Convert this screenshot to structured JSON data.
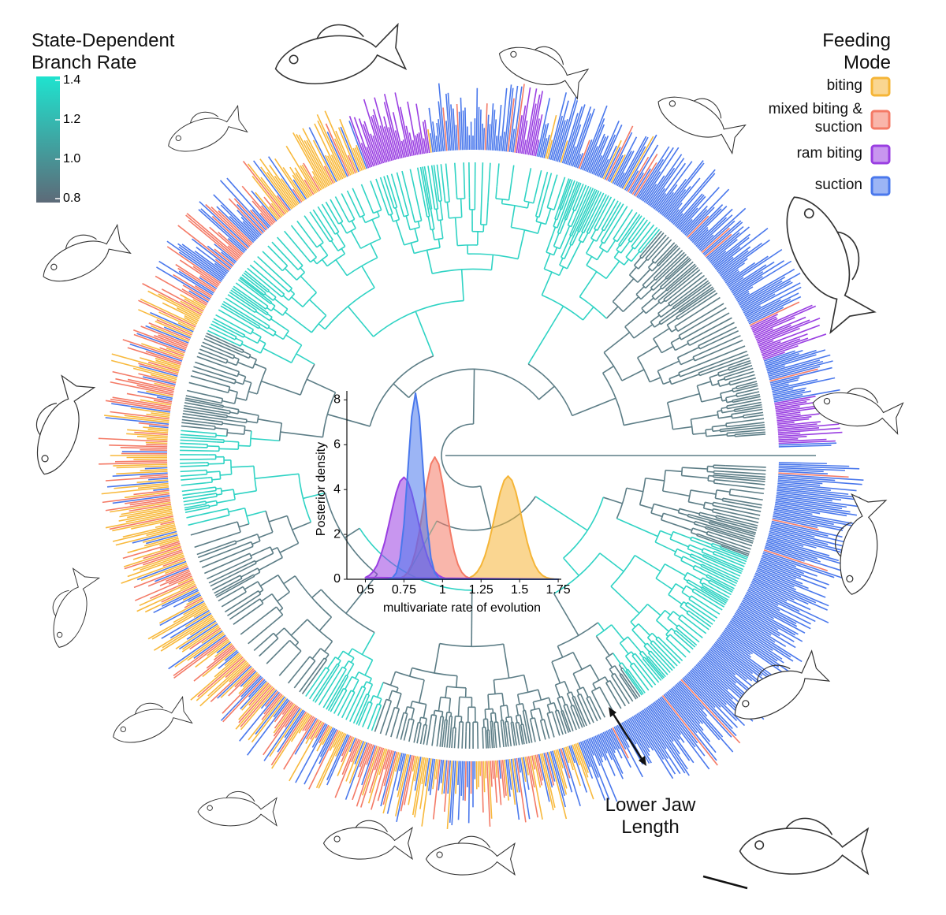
{
  "colorbar": {
    "title": "State-Dependent Branch Rate",
    "lim": [
      0.78,
      1.42
    ],
    "ticks": [
      1.4,
      1.2,
      {
        "value": 1.0,
        "label": "1.0"
      },
      0.8
    ],
    "colors": [
      "#5d6a78",
      "#1fe3cf"
    ]
  },
  "annotation": "Lower Jaw Length",
  "chart_data": {
    "type": "area",
    "legend_title": "Feeding Mode",
    "xlabel": "multivariate rate of evolution",
    "ylabel": "Posterior density",
    "xlim": [
      0.38,
      1.77
    ],
    "xticks": [
      0.5,
      0.75,
      1,
      1.25,
      1.5,
      1.75
    ],
    "ylim": [
      0,
      8.4
    ],
    "yticks": [
      0,
      2,
      4,
      6,
      8
    ],
    "x": [
      0.5,
      0.525,
      0.55,
      0.575,
      0.6,
      0.625,
      0.65,
      0.675,
      0.7,
      0.725,
      0.75,
      0.775,
      0.8,
      0.825,
      0.85,
      0.875,
      0.9,
      0.925,
      0.95,
      0.975,
      1.0,
      1.025,
      1.05,
      1.075,
      1.1,
      1.125,
      1.15,
      1.175,
      1.2,
      1.225,
      1.25,
      1.275,
      1.3,
      1.325,
      1.35,
      1.375,
      1.4,
      1.425,
      1.45,
      1.475,
      1.5,
      1.525,
      1.55,
      1.575,
      1.6,
      1.625,
      1.65,
      1.675,
      1.7,
      1.725,
      1.75
    ],
    "series": [
      {
        "name": "biting",
        "color": "#f5b537",
        "values": [
          0,
          0,
          0,
          0,
          0,
          0,
          0,
          0,
          0,
          0,
          0,
          0,
          0,
          0,
          0,
          0,
          0,
          0,
          0,
          0,
          0,
          0,
          0,
          0,
          0,
          0.01,
          0.03,
          0.07,
          0.16,
          0.33,
          0.61,
          1.04,
          1.64,
          2.38,
          3.17,
          3.9,
          4.41,
          4.6,
          4.41,
          3.9,
          3.17,
          2.38,
          1.64,
          1.04,
          0.61,
          0.33,
          0.16,
          0.07,
          0.03,
          0.01,
          0
        ]
      },
      {
        "name": "mixed biting & suction",
        "color": "#f47a66",
        "values": [
          0,
          0,
          0,
          0,
          0,
          0,
          0,
          0,
          0.02,
          0.05,
          0.13,
          0.31,
          0.66,
          1.25,
          2.13,
          3.21,
          4.31,
          5.14,
          5.45,
          5.14,
          4.31,
          3.21,
          2.13,
          1.25,
          0.66,
          0.31,
          0.13,
          0.05,
          0.02,
          0,
          0,
          0,
          0,
          0,
          0,
          0,
          0,
          0,
          0,
          0,
          0,
          0,
          0,
          0,
          0,
          0,
          0,
          0,
          0,
          0,
          0
        ]
      },
      {
        "name": "ram biting",
        "color": "#9a3fe2",
        "values": [
          0.08,
          0.17,
          0.34,
          0.62,
          1.06,
          1.64,
          2.38,
          3.15,
          3.87,
          4.37,
          4.55,
          4.37,
          3.87,
          3.15,
          2.38,
          1.64,
          1.06,
          0.62,
          0.34,
          0.17,
          0.08,
          0.03,
          0.01,
          0,
          0,
          0,
          0,
          0,
          0,
          0,
          0,
          0,
          0,
          0,
          0,
          0,
          0,
          0,
          0,
          0,
          0,
          0,
          0,
          0,
          0,
          0,
          0,
          0,
          0,
          0,
          0
        ]
      },
      {
        "name": "suction",
        "color": "#4a78ec",
        "values": [
          0,
          0,
          0,
          0,
          0,
          0,
          0.01,
          0.06,
          0.28,
          0.95,
          2.45,
          4.83,
          7.25,
          8.3,
          7.25,
          4.83,
          2.45,
          0.95,
          0.28,
          0.06,
          0.01,
          0,
          0,
          0,
          0,
          0,
          0,
          0,
          0,
          0,
          0,
          0,
          0,
          0,
          0,
          0,
          0,
          0,
          0,
          0,
          0,
          0,
          0,
          0,
          0,
          0,
          0,
          0,
          0,
          0,
          0
        ]
      }
    ]
  }
}
